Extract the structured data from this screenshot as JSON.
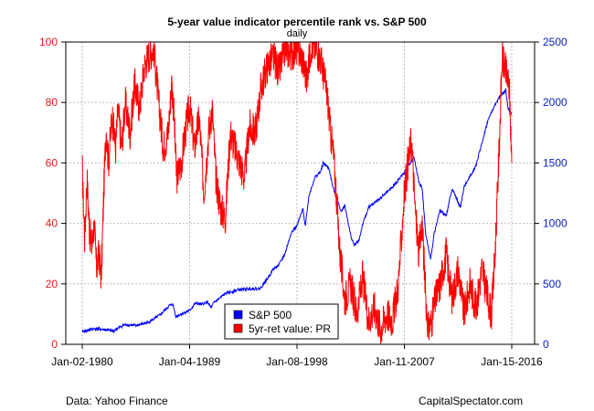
{
  "title": "5-year value indicator percentile rank vs. S&P 500",
  "subtitle": "daily",
  "footer": {
    "source": "Data: Yahoo Finance",
    "credit": "CapitalSpectator.com"
  },
  "chart_data": {
    "type": "line",
    "x_ticks": [
      {
        "label": "Jan-02-1980",
        "year": 1980.0
      },
      {
        "label": "Jan-04-1989",
        "year": 1989.0
      },
      {
        "label": "Jan-08-1998",
        "year": 1998.0
      },
      {
        "label": "Jan-11-2007",
        "year": 2007.0
      },
      {
        "label": "Jan-15-2016",
        "year": 2016.0
      }
    ],
    "xlim": [
      1980.0,
      2016.1
    ],
    "left_axis": {
      "ticks": [
        0,
        20,
        40,
        60,
        80,
        100
      ],
      "ylim": [
        0,
        100
      ],
      "color": "#e31a1c"
    },
    "right_axis": {
      "ticks": [
        0,
        500,
        1000,
        1500,
        2000,
        2500
      ],
      "ylim": [
        0,
        2500
      ],
      "color": "#0b20c8"
    },
    "grid": true,
    "legend_position": "bottom-center",
    "series": [
      {
        "name": "S&P 500",
        "axis": "right",
        "color": "#0000ff",
        "x": [
          1980.0,
          1981.0,
          1982.0,
          1982.6,
          1983.5,
          1984.0,
          1984.5,
          1985.5,
          1986.0,
          1986.5,
          1987.3,
          1987.6,
          1987.85,
          1988.5,
          1989.0,
          1989.5,
          1990.0,
          1990.5,
          1990.8,
          1991.0,
          1991.5,
          1992.0,
          1993.0,
          1994.0,
          1994.9,
          1995.5,
          1996.0,
          1996.5,
          1997.0,
          1997.5,
          1998.0,
          1998.5,
          1998.7,
          1999.0,
          1999.5,
          2000.0,
          2000.2,
          2000.7,
          2001.0,
          2001.7,
          2002.0,
          2002.5,
          2002.8,
          2003.2,
          2003.5,
          2004.0,
          2005.0,
          2006.0,
          2007.0,
          2007.8,
          2008.2,
          2008.5,
          2008.8,
          2009.2,
          2009.5,
          2010.0,
          2010.5,
          2011.0,
          2011.7,
          2012.0,
          2013.0,
          2014.0,
          2014.5,
          2015.0,
          2015.5,
          2015.7,
          2016.0
        ],
        "values": [
          105,
          130,
          120,
          110,
          160,
          160,
          155,
          180,
          210,
          240,
          320,
          330,
          230,
          260,
          280,
          340,
          330,
          350,
          300,
          340,
          380,
          420,
          450,
          460,
          460,
          540,
          620,
          660,
          750,
          920,
          980,
          1120,
          980,
          1230,
          1380,
          1430,
          1500,
          1450,
          1300,
          1100,
          1150,
          900,
          820,
          860,
          990,
          1130,
          1210,
          1300,
          1420,
          1550,
          1350,
          1280,
          900,
          700,
          920,
          1110,
          1060,
          1290,
          1130,
          1300,
          1480,
          1850,
          1960,
          2050,
          2100,
          1950,
          1900
        ]
      },
      {
        "name": "5yr-ret value: PR",
        "axis": "left",
        "color": "#ff0000",
        "x": [
          1980.0,
          1980.2,
          1980.4,
          1980.6,
          1980.8,
          1981.0,
          1981.2,
          1981.4,
          1981.6,
          1981.8,
          1982.0,
          1982.2,
          1982.5,
          1982.8,
          1983.0,
          1983.3,
          1983.6,
          1984.0,
          1984.4,
          1984.8,
          1985.2,
          1985.6,
          1986.0,
          1986.4,
          1986.8,
          1987.2,
          1987.5,
          1987.7,
          1987.9,
          1988.3,
          1988.7,
          1989.0,
          1989.4,
          1989.8,
          1990.2,
          1990.6,
          1990.9,
          1991.2,
          1991.6,
          1992.0,
          1992.4,
          1992.8,
          1993.2,
          1993.6,
          1994.0,
          1994.5,
          1995.0,
          1995.5,
          1996.0,
          1996.5,
          1997.0,
          1997.5,
          1998.0,
          1998.4,
          1998.8,
          1999.2,
          1999.6,
          2000.0,
          2000.3,
          2000.6,
          2000.8,
          2001.0,
          2001.3,
          2001.6,
          2002.0,
          2002.5,
          2003.0,
          2003.5,
          2004.0,
          2004.5,
          2005.0,
          2005.5,
          2006.0,
          2006.5,
          2007.0,
          2007.3,
          2007.6,
          2007.9,
          2008.2,
          2008.5,
          2008.8,
          2009.0,
          2009.3,
          2009.6,
          2010.0,
          2010.5,
          2011.0,
          2011.5,
          2012.0,
          2012.5,
          2013.0,
          2013.5,
          2014.0,
          2014.3,
          2014.6,
          2014.9,
          2015.2,
          2015.5,
          2015.8,
          2016.0
        ],
        "values": [
          58,
          35,
          55,
          38,
          32,
          40,
          25,
          30,
          22,
          50,
          72,
          60,
          76,
          65,
          78,
          65,
          80,
          70,
          86,
          78,
          92,
          96,
          98,
          80,
          65,
          70,
          87,
          75,
          55,
          60,
          72,
          79,
          65,
          75,
          50,
          70,
          78,
          55,
          45,
          42,
          70,
          65,
          60,
          55,
          72,
          70,
          85,
          92,
          95,
          90,
          98,
          96,
          98,
          95,
          88,
          99,
          98,
          94,
          88,
          80,
          70,
          65,
          50,
          30,
          15,
          20,
          10,
          22,
          8,
          12,
          5,
          10,
          8,
          20,
          50,
          60,
          68,
          45,
          30,
          40,
          15,
          5,
          8,
          15,
          20,
          30,
          15,
          25,
          10,
          20,
          12,
          25,
          15,
          10,
          30,
          60,
          95,
          90,
          85,
          60
        ]
      }
    ]
  }
}
